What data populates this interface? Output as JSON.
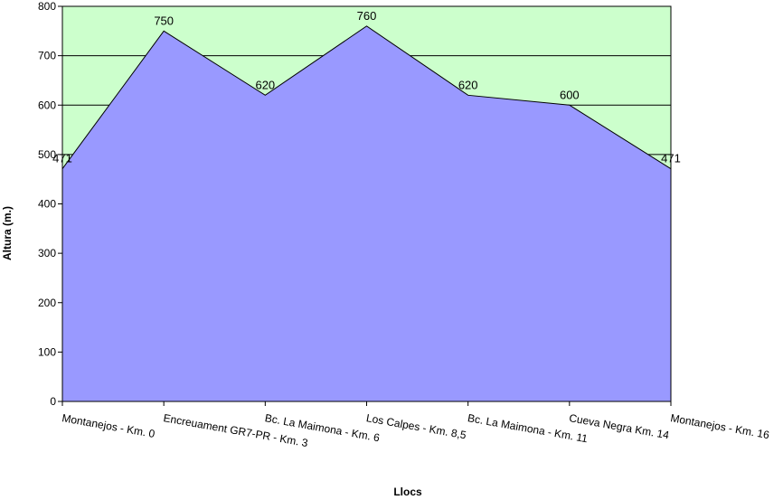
{
  "chart_data": {
    "type": "area",
    "title": "",
    "xlabel": "Llocs",
    "ylabel": "Altura (m.)",
    "ylim": [
      0,
      800
    ],
    "yticks": [
      0,
      100,
      200,
      300,
      400,
      500,
      600,
      700,
      800
    ],
    "categories": [
      "Montanejos - Km. 0",
      "Encreuament GR7-PR - Km. 3",
      "Bc. La Maimona - Km. 6",
      "Los Calpes - Km. 8,5",
      "Bc. La Maimona - Km. 11",
      "Cueva Negra Km. 14",
      "Montanejos - Km. 16"
    ],
    "series": [
      {
        "values": [
          471,
          750,
          620,
          760,
          620,
          600,
          471
        ]
      }
    ],
    "data_labels": [
      "471",
      "750",
      "620",
      "760",
      "620",
      "600",
      "471"
    ],
    "grid": true,
    "legend": "none",
    "colors": {
      "plot_background": "#ccffcc",
      "area_fill": "#9999ff",
      "area_line": "#000000",
      "gridline": "#000000",
      "axis": "#000000"
    }
  }
}
